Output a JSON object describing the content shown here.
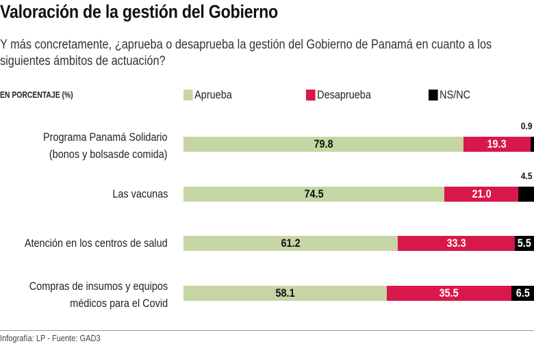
{
  "chart_data": {
    "type": "bar",
    "stacked": true,
    "orientation": "horizontal",
    "title": "Valoración de la gestión del Gobierno",
    "subtitle": "Y más concretamente, ¿aprueba o desaprueba la gestión del Gobierno de Panamá en cuanto a los siguientes ámbitos de actuación?",
    "unit_label": "EN PORCENTAJE (%)",
    "categories": [
      [
        "Programa Panamá Solidario",
        "(bonos y bolsasde comida)"
      ],
      [
        "Las vacunas"
      ],
      [
        "Atención en los centros de salud"
      ],
      [
        "Compras de insumos y equipos",
        "médicos para el Covid"
      ]
    ],
    "series": [
      {
        "name": "Aprueba",
        "color": "#c5d6a4",
        "values": [
          79.8,
          74.5,
          61.2,
          58.1
        ]
      },
      {
        "name": "Desaprueba",
        "color": "#d8184a",
        "values": [
          19.3,
          21.0,
          33.3,
          35.5
        ]
      },
      {
        "name": "NS/NC",
        "color": "#000000",
        "values": [
          0.9,
          4.5,
          5.5,
          6.5
        ]
      }
    ],
    "legend": "top",
    "source": "Infografía: LP - Fuente: GAD3"
  }
}
